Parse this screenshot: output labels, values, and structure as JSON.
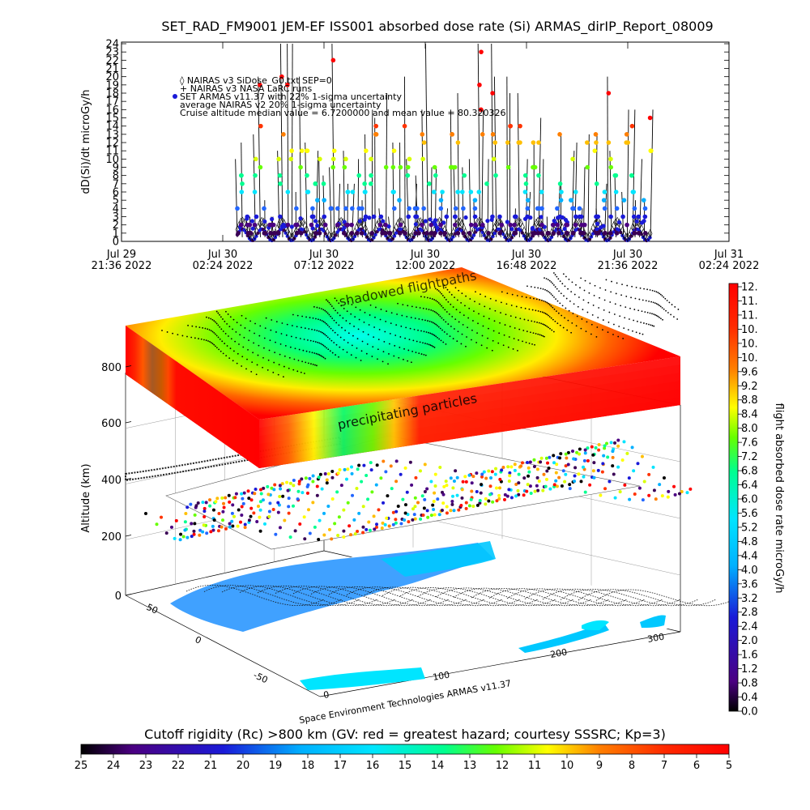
{
  "title": "SET_RAD_FM9001  JEM-EF ISS001 absorbed dose rate (Si) ARMAS_dirIP_Report_08009",
  "chart_data": [
    {
      "type": "scatter",
      "ylabel": "dD(Si)/dt microGy/h",
      "ylim": [
        0,
        24
      ],
      "yticks": [
        "0",
        "1",
        "2",
        "3",
        "4",
        "5",
        "6",
        "7",
        "8",
        "9",
        "10",
        "11",
        "12",
        "13",
        "14",
        "15",
        "16",
        "17",
        "18",
        "19",
        "20",
        "21",
        "22",
        "23",
        "24"
      ],
      "xticks": [
        {
          "line1": "Jul 29",
          "line2": "21:36  2022"
        },
        {
          "line1": "Jul 30",
          "line2": "02:24  2022"
        },
        {
          "line1": "Jul 30",
          "line2": "07:12  2022"
        },
        {
          "line1": "Jul 30",
          "line2": "12:00  2022"
        },
        {
          "line1": "Jul 30",
          "line2": "16:48  2022"
        },
        {
          "line1": "Jul 30",
          "line2": "21:36  2022"
        },
        {
          "line1": "Jul 31",
          "line2": "02:24  2022"
        }
      ],
      "legend": [
        "◊ NAIRAS v3 SiDose_G0.txt SEP=0",
        "+ NAIRAS v3 NASA LaRC runs",
        "SET ARMAS v11.37 with 22% 1-sigma uncertainty",
        "average NAIRAS v2 20% 1-sigma uncertainty",
        "Cruise altitude median value = 6.7200000 and mean value = 80.320326"
      ],
      "legend_position": "top-left",
      "x_start_fraction": 0.18,
      "x_end_fraction": 0.95,
      "baseline_range": [
        0,
        2.5
      ],
      "spike_values": [
        24,
        20,
        18,
        16,
        15,
        13,
        12,
        11,
        10,
        9,
        8,
        7,
        6,
        5,
        4,
        3
      ]
    },
    {
      "type": "3d-surface",
      "zlabel": "Altitude (km)",
      "zticks": [
        "0",
        "200",
        "400",
        "600",
        "800"
      ],
      "x_axis_ticks": [
        "0",
        "100",
        "200",
        "300"
      ],
      "y_axis_ticks": [
        "-50",
        "0",
        "50"
      ],
      "annotations": [
        "shadowed flightpaths",
        "precipitating particles"
      ],
      "credit": "Space Environment Technologies ARMAS v11.37"
    }
  ],
  "colorbar_right": {
    "label": "flight absorbed dose rate microGy/h",
    "ticks": [
      "12.",
      "11.",
      "11.",
      "10.",
      "10.",
      "10.",
      "9.6",
      "9.2",
      "8.8",
      "8.4",
      "8.0",
      "7.6",
      "7.2",
      "6.8",
      "6.4",
      "6.0",
      "5.6",
      "5.2",
      "4.8",
      "4.4",
      "4.0",
      "3.6",
      "3.2",
      "2.8",
      "2.4",
      "2.0",
      "1.6",
      "1.2",
      "0.8",
      "0.4",
      "0.0"
    ]
  },
  "colorbar_bottom": {
    "label": "Cutoff rigidity (Rc) >800 km (GV: red = greatest hazard; courtesy SSSRC; Kp=3)",
    "ticks": [
      "25",
      "24",
      "23",
      "22",
      "21",
      "20",
      "19",
      "18",
      "17",
      "16",
      "15",
      "14",
      "13",
      "12",
      "11",
      "10",
      "9",
      "8",
      "7",
      "6",
      "5"
    ]
  },
  "colors": {
    "rainbow": [
      "#000000",
      "#3a0055",
      "#4b0082",
      "#1a1ad8",
      "#2266ff",
      "#00b0ff",
      "#00e5ff",
      "#00ff90",
      "#66ff00",
      "#d8ff00",
      "#ffff00",
      "#ffbf00",
      "#ff7f00",
      "#ff3300",
      "#ff0000"
    ]
  }
}
